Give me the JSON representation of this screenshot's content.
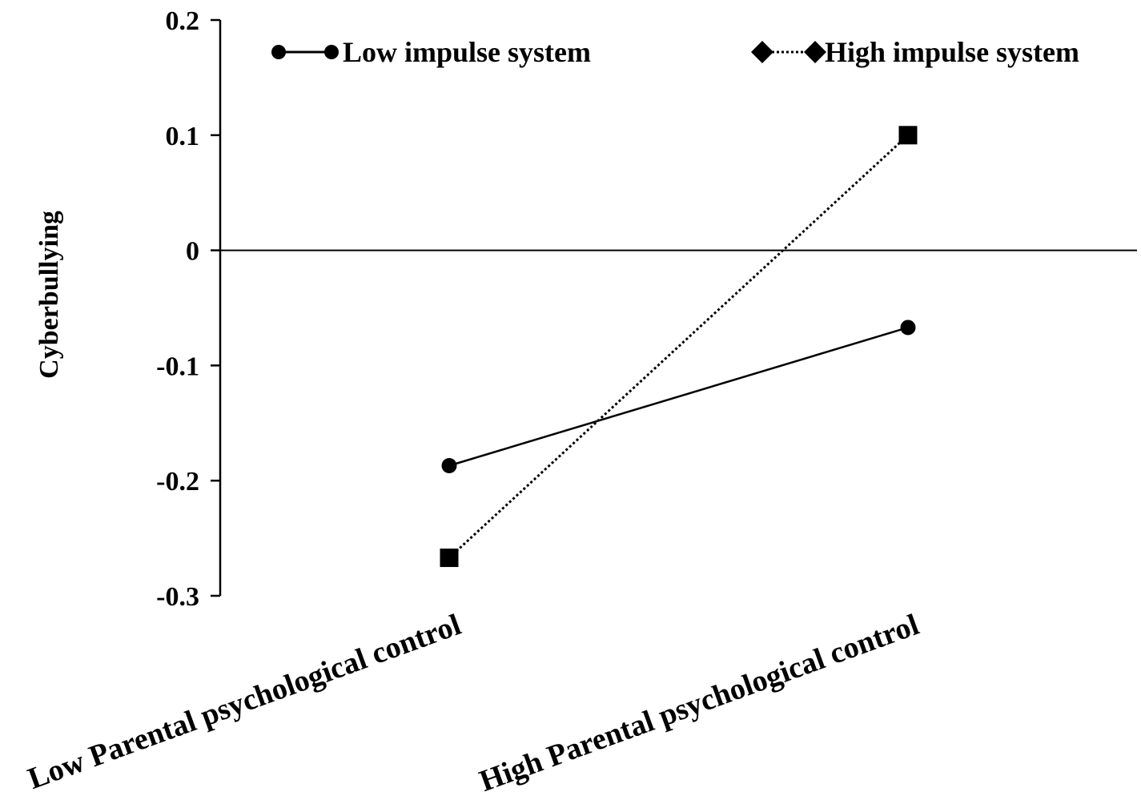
{
  "chart_data": {
    "type": "line",
    "title": "",
    "xlabel": "",
    "ylabel": "Cyberbullying",
    "ylim": [
      -0.3,
      0.2
    ],
    "yticks": [
      "0.2",
      "0.1",
      "0",
      "-0.1",
      "-0.2",
      "-0.3"
    ],
    "ytick_values": [
      0.2,
      0.1,
      0,
      -0.1,
      -0.2,
      -0.3
    ],
    "categories": [
      "Low Parental psychological control",
      "High Parental psychological control"
    ],
    "series": [
      {
        "name": "Low impulse system",
        "values": [
          -0.187,
          -0.067
        ],
        "line_style": "solid",
        "marker": "circle"
      },
      {
        "name": "High impulse system",
        "values": [
          -0.267,
          0.1
        ],
        "line_style": "dotted",
        "marker": "square",
        "legend_marker": "diamond"
      }
    ],
    "zero_line": true,
    "legend_position": "top",
    "colors": {
      "line": "#000000",
      "background": "#ffffff"
    }
  }
}
